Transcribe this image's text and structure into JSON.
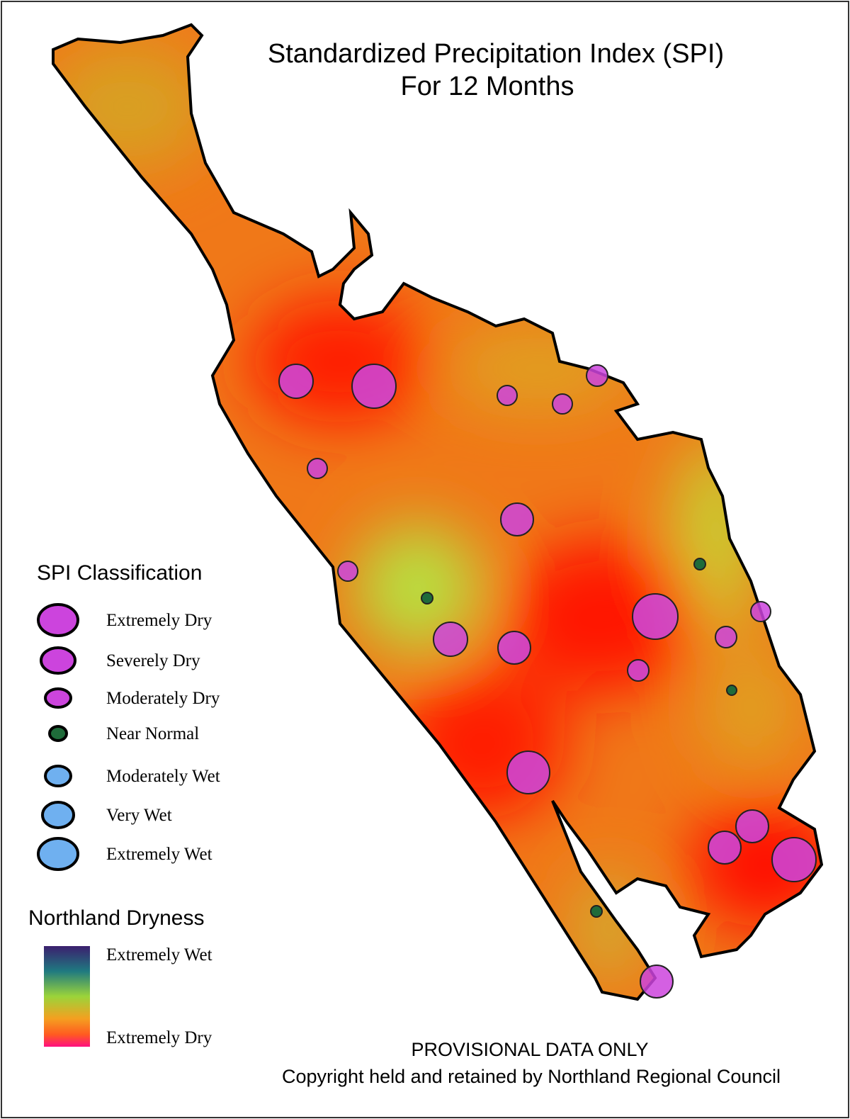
{
  "map": {
    "title": [
      "Standardized Precipitation Index (SPI)",
      "For 12 Months"
    ],
    "spi_legend": {
      "heading": "SPI Classification",
      "classes": [
        "Extremely Dry",
        "Severely Dry",
        "Moderately Dry",
        "Near Normal",
        "Moderately Wet",
        "Very Wet",
        "Extremely Wet"
      ]
    },
    "dryness_legend": {
      "heading": "Northland Dryness",
      "top": "Extremely Wet",
      "bottom": "Extremely Dry"
    },
    "footer": [
      "PROVISIONAL DATA ONLY",
      "Copyright held and retained by Northland Regional Council"
    ]
  }
}
